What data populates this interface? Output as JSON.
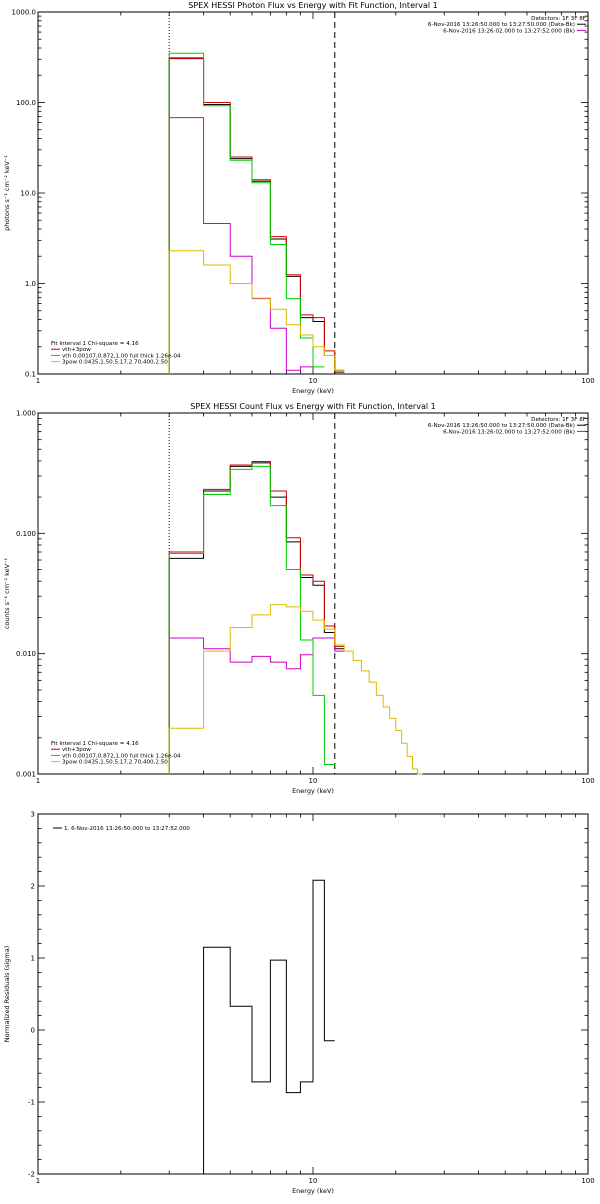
{
  "chart_data": [
    {
      "type": "line",
      "step": true,
      "title": "SPEX HESSI Photon Flux vs Energy with Fit Function, Interval 1",
      "xlabel": "Energy (keV)",
      "ylabel": "photons s⁻¹ cm⁻² keV⁻¹",
      "xscale": "log",
      "yscale": "log",
      "xlim": [
        1,
        100
      ],
      "ylim": [
        0.1,
        1000
      ],
      "x_ticks": [
        "1",
        "10",
        "100"
      ],
      "y_ticks": [
        "0.1",
        "1.0",
        "10.0",
        "100.0",
        "1000.0"
      ],
      "vlines": [
        {
          "x": 3.0,
          "style": "dotted"
        },
        {
          "x": 12.0,
          "style": "dashed"
        }
      ],
      "legend_top": {
        "placement": "top-right",
        "header": "Detectors: 1F 3F 8F",
        "entries": [
          {
            "text": "6-Nov-2016 13:26:50.000 to 13:27:50.000 (Data-Bk)",
            "color": "#000000"
          },
          {
            "text": "6-Nov-2016 13:26:02.000 to 13:27:52.000 (Bk)",
            "color": "#cc00cc"
          }
        ]
      },
      "legend_bottom": {
        "placement": "bottom-left",
        "header": "Fit Interval 1   Chi-square = 4.16",
        "entries": [
          {
            "text": "vth+3pow",
            "color": "#cc0000"
          },
          {
            "text": "vth 0.00107,0.872,1.00   full thick 1.26e-04",
            "color": "#00cc00"
          },
          {
            "text": "3pow 0.0435,1.50,5.17,2.70,400,2.50",
            "color": "#ddbb00"
          }
        ]
      },
      "bin_edges": [
        3.0,
        4.0,
        5.0,
        6.0,
        7.0,
        8.0,
        9.0,
        10.0,
        11.0,
        12.0,
        13.0
      ],
      "series": [
        {
          "name": "6-Nov-2016 13:26:50.000 to 13:27:50.000 (Data-Bk)",
          "color": "#000000",
          "values": [
            310,
            95,
            24,
            13.5,
            3.1,
            1.2,
            0.42,
            0.38,
            0.16,
            0.105
          ]
        },
        {
          "name": "6-Nov-2016 13:26:02.000 to 13:27:52.000 (Bk)",
          "color": "#cc00cc",
          "values": [
            68,
            4.6,
            2.0,
            0.68,
            0.32,
            0.11,
            0.12,
            null,
            null,
            null
          ]
        },
        {
          "name": "vth+3pow",
          "color": "#cc0000",
          "values": [
            305,
            100,
            25,
            14,
            3.3,
            1.25,
            0.45,
            0.42,
            0.18,
            0.11
          ]
        },
        {
          "name": "vth",
          "color": "#00cc00",
          "values": [
            350,
            92,
            23,
            13,
            2.7,
            0.68,
            0.25,
            0.12,
            null,
            null
          ]
        },
        {
          "name": "3pow",
          "color": "#ddbb00",
          "values": [
            2.3,
            1.6,
            1.0,
            0.69,
            0.52,
            0.35,
            0.27,
            0.2,
            0.16,
            0.11
          ]
        }
      ]
    },
    {
      "type": "line",
      "step": true,
      "title": "SPEX HESSI Count Flux vs Energy with Fit Function, Interval 1",
      "xlabel": "Energy (keV)",
      "ylabel": "counts s⁻¹ cm⁻² keV⁻¹",
      "xscale": "log",
      "yscale": "log",
      "xlim": [
        1,
        100
      ],
      "ylim": [
        0.001,
        1
      ],
      "x_ticks": [
        "1",
        "10",
        "100"
      ],
      "y_ticks": [
        "0.001",
        "0.010",
        "0.100",
        "1.000"
      ],
      "vlines": [
        {
          "x": 3.0,
          "style": "dotted"
        },
        {
          "x": 12.0,
          "style": "dashed"
        }
      ],
      "legend_top": {
        "placement": "top-right",
        "header": "Detectors: 1F 3F 8F",
        "entries": [
          {
            "text": "6-Nov-2016 13:26:50.000 to 13:27:50.000 (Data-Bk)",
            "color": "#000000"
          },
          {
            "text": "6-Nov-2016 13:26:02.000 to 13:27:52.000 (Bk)",
            "color": "#cc00cc"
          }
        ]
      },
      "legend_bottom": {
        "placement": "bottom-left",
        "header": "Fit Interval 1   Chi-square = 4.16",
        "entries": [
          {
            "text": "vth+3pow",
            "color": "#cc0000"
          },
          {
            "text": "vth 0.00107,0.872,1.00   full thick 1.26e-04",
            "color": "#00cc00"
          },
          {
            "text": "3pow 0.0435,1.50,5.17,2.70,400,2.50",
            "color": "#ddbb00"
          }
        ]
      },
      "bin_edges": [
        3.0,
        4.0,
        5.0,
        6.0,
        7.0,
        8.0,
        9.0,
        10.0,
        11.0,
        12.0,
        13.0,
        14.0,
        15.0,
        16.0,
        17.0,
        18.0,
        19.0,
        20.0,
        21.0,
        22.0,
        23.0,
        24.0,
        25.0
      ],
      "series": [
        {
          "name": "6-Nov-2016 13:26:50.000 to 13:27:50.000 (Data-Bk)",
          "color": "#000000",
          "values": [
            0.062,
            0.225,
            0.36,
            0.385,
            0.2,
            0.085,
            0.043,
            0.037,
            0.015,
            0.011
          ]
        },
        {
          "name": "6-Nov-2016 13:26:02.000 to 13:27:52.000 (Bk)",
          "color": "#cc00cc",
          "values": [
            0.0135,
            0.011,
            0.0085,
            0.0095,
            0.0085,
            0.0075,
            0.0098,
            0.0135,
            0.0135,
            0.0105
          ]
        },
        {
          "name": "vth+3pow",
          "color": "#cc0000",
          "values": [
            0.07,
            0.232,
            0.37,
            0.395,
            0.225,
            0.092,
            0.045,
            0.04,
            0.017,
            0.0115
          ]
        },
        {
          "name": "vth",
          "color": "#00cc00",
          "values": [
            0.068,
            0.21,
            0.34,
            0.36,
            0.17,
            0.05,
            0.013,
            0.0045,
            0.0012,
            null
          ]
        },
        {
          "name": "3pow",
          "color": "#ddbb00",
          "values": [
            0.0024,
            0.0105,
            0.0165,
            0.021,
            0.0255,
            0.0245,
            0.0225,
            0.019,
            0.016,
            0.0118,
            0.0105,
            0.0088,
            0.0072,
            0.0058,
            0.0045,
            0.0036,
            0.0029,
            0.0023,
            0.0018,
            0.0014,
            0.0011,
            0.001
          ]
        }
      ]
    },
    {
      "type": "line",
      "step": true,
      "xlabel": "Energy (keV)",
      "ylabel": "Normalized Residuals (sigma)",
      "xscale": "log",
      "yscale": "linear",
      "xlim": [
        1,
        100
      ],
      "ylim": [
        -2,
        3
      ],
      "x_ticks": [
        "1",
        "10",
        "100"
      ],
      "y_ticks": [
        "-2",
        "-1",
        "0",
        "1",
        "2",
        "3"
      ],
      "legend": {
        "placement": "top-left",
        "entries": [
          {
            "text": "1.  6-Nov-2016 13:26:50.000 to 13:27:52.000",
            "color": "#000000"
          }
        ]
      },
      "bin_edges": [
        3.0,
        4.0,
        5.0,
        6.0,
        7.0,
        8.0,
        9.0,
        10.0,
        11.0,
        12.0
      ],
      "series": [
        {
          "color": "#000000",
          "values": [
            -2.0,
            1.15,
            0.33,
            -0.72,
            0.97,
            -0.87,
            -0.72,
            2.08,
            -0.15
          ]
        }
      ]
    }
  ]
}
